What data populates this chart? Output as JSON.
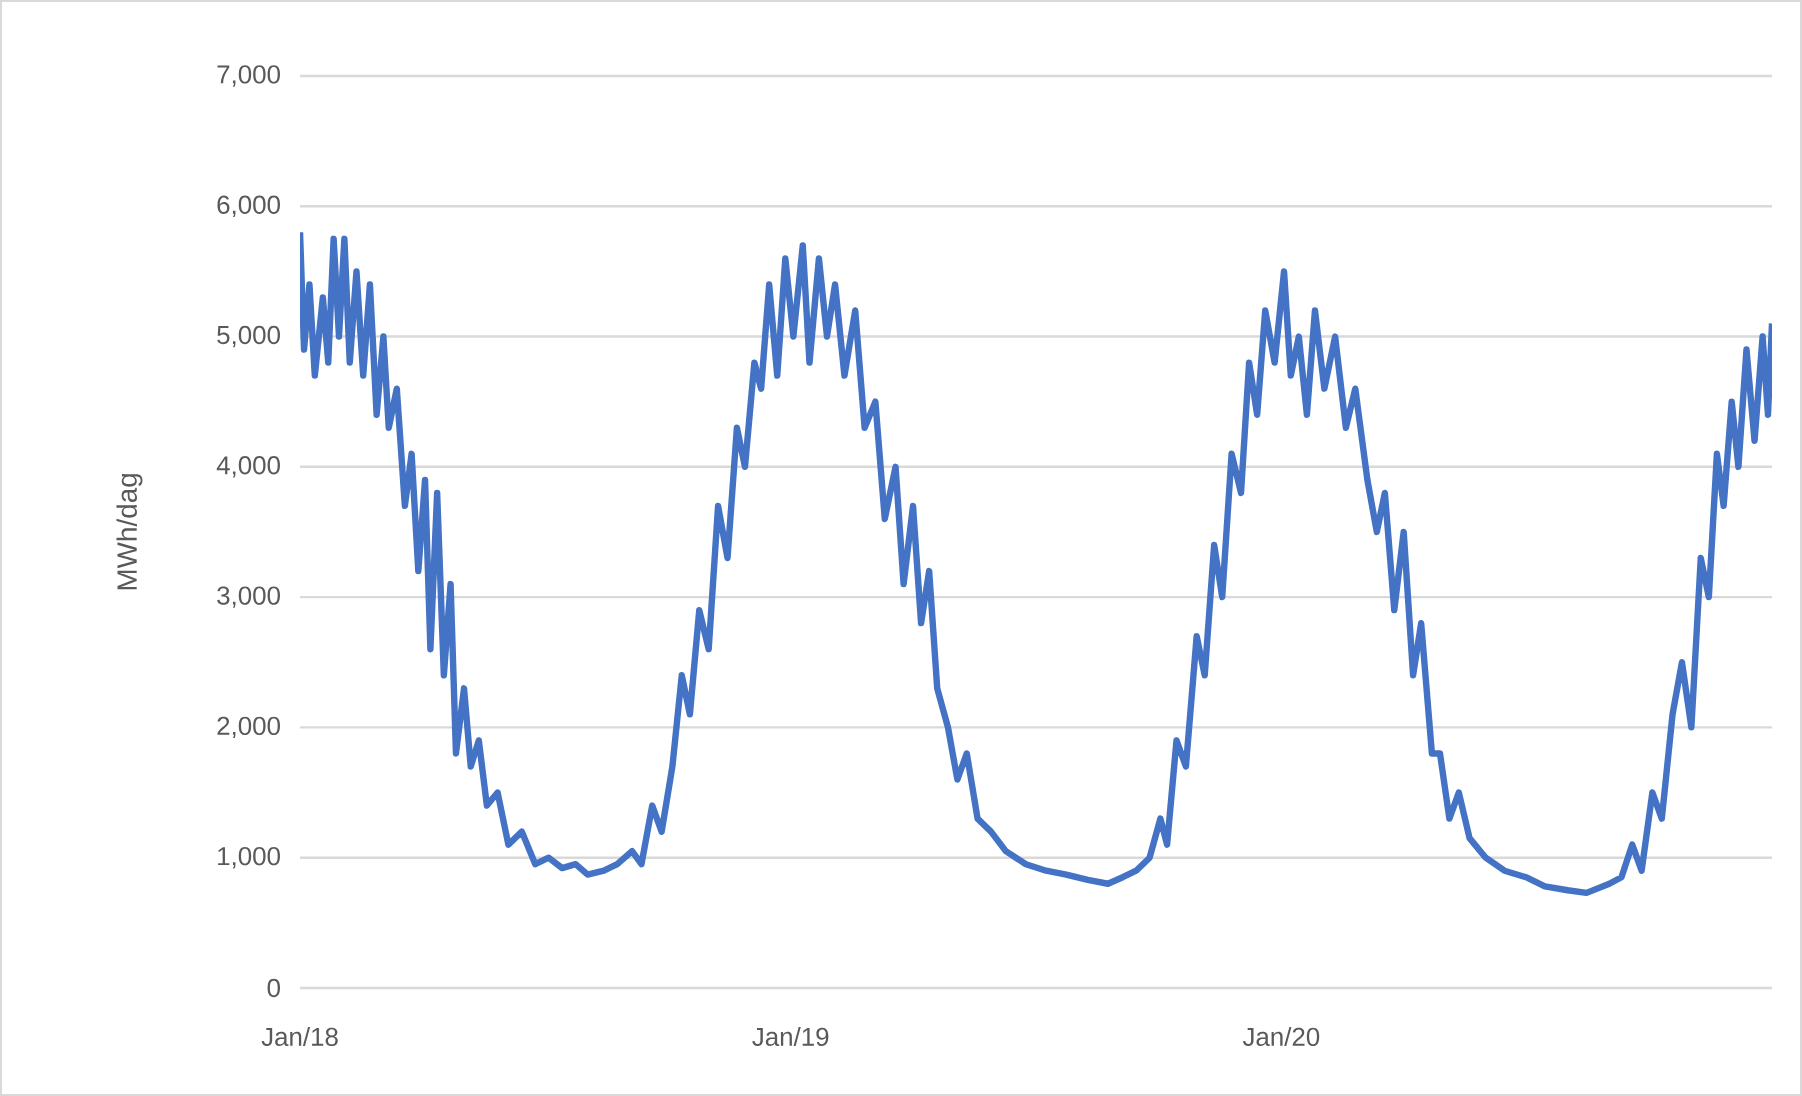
{
  "chart_data": {
    "type": "line",
    "ylabel": "MWh/dag",
    "color": "#4472c4",
    "grid": "y",
    "marker": "none",
    "line_style": "solid",
    "xlim": [
      "2018-01-01",
      "2020-12-31"
    ],
    "xticks": [
      {
        "value": "2018-01-01",
        "label": "Jan/18"
      },
      {
        "value": "2019-01-01",
        "label": "Jan/19"
      },
      {
        "value": "2020-01-01",
        "label": "Jan/20"
      }
    ],
    "ylim": [
      0,
      7000
    ],
    "yticks": [
      0,
      {
        "value": 1000,
        "label": "1,000"
      },
      {
        "value": 2000,
        "label": "2,000"
      },
      {
        "value": 3000,
        "label": "3,000"
      },
      {
        "value": 4000,
        "label": "4,000"
      },
      {
        "value": 5000,
        "label": "5,000"
      },
      {
        "value": 6000,
        "label": "6,000"
      },
      {
        "value": 7000,
        "label": "7,000"
      }
    ],
    "x": [
      "2018-01-01",
      "2018-01-04",
      "2018-01-08",
      "2018-01-12",
      "2018-01-18",
      "2018-01-22",
      "2018-01-26",
      "2018-01-30",
      "2018-02-03",
      "2018-02-07",
      "2018-02-12",
      "2018-02-17",
      "2018-02-22",
      "2018-02-27",
      "2018-03-04",
      "2018-03-08",
      "2018-03-14",
      "2018-03-20",
      "2018-03-25",
      "2018-03-30",
      "2018-04-04",
      "2018-04-08",
      "2018-04-13",
      "2018-04-18",
      "2018-04-23",
      "2018-04-27",
      "2018-05-03",
      "2018-05-08",
      "2018-05-14",
      "2018-05-20",
      "2018-05-28",
      "2018-06-05",
      "2018-06-15",
      "2018-06-25",
      "2018-07-05",
      "2018-07-15",
      "2018-07-25",
      "2018-08-03",
      "2018-08-15",
      "2018-08-25",
      "2018-09-05",
      "2018-09-12",
      "2018-09-20",
      "2018-09-27",
      "2018-10-05",
      "2018-10-12",
      "2018-10-18",
      "2018-10-25",
      "2018-11-01",
      "2018-11-08",
      "2018-11-15",
      "2018-11-22",
      "2018-11-28",
      "2018-12-05",
      "2018-12-10",
      "2018-12-16",
      "2018-12-22",
      "2018-12-28",
      "2019-01-03",
      "2019-01-10",
      "2019-01-15",
      "2019-01-22",
      "2019-01-28",
      "2019-02-03",
      "2019-02-10",
      "2019-02-18",
      "2019-02-25",
      "2019-03-05",
      "2019-03-12",
      "2019-03-20",
      "2019-03-26",
      "2019-04-02",
      "2019-04-08",
      "2019-04-14",
      "2019-04-20",
      "2019-04-28",
      "2019-05-05",
      "2019-05-12",
      "2019-05-20",
      "2019-05-30",
      "2019-06-10",
      "2019-06-25",
      "2019-07-10",
      "2019-07-25",
      "2019-08-10",
      "2019-08-25",
      "2019-09-05",
      "2019-09-15",
      "2019-09-25",
      "2019-10-03",
      "2019-10-08",
      "2019-10-15",
      "2019-10-22",
      "2019-10-30",
      "2019-11-05",
      "2019-11-12",
      "2019-11-18",
      "2019-11-25",
      "2019-12-02",
      "2019-12-08",
      "2019-12-14",
      "2019-12-20",
      "2019-12-27",
      "2020-01-03",
      "2020-01-08",
      "2020-01-14",
      "2020-01-20",
      "2020-01-26",
      "2020-02-02",
      "2020-02-10",
      "2020-02-18",
      "2020-02-25",
      "2020-03-05",
      "2020-03-12",
      "2020-03-18",
      "2020-03-25",
      "2020-04-01",
      "2020-04-08",
      "2020-04-14",
      "2020-04-22",
      "2020-04-28",
      "2020-05-05",
      "2020-05-12",
      "2020-05-20",
      "2020-06-01",
      "2020-06-15",
      "2020-07-01",
      "2020-07-15",
      "2020-08-01",
      "2020-08-15",
      "2020-09-01",
      "2020-09-10",
      "2020-09-18",
      "2020-09-25",
      "2020-10-03",
      "2020-10-10",
      "2020-10-18",
      "2020-10-25",
      "2020-11-01",
      "2020-11-08",
      "2020-11-14",
      "2020-11-20",
      "2020-11-25",
      "2020-12-01",
      "2020-12-06",
      "2020-12-12",
      "2020-12-18",
      "2020-12-24",
      "2020-12-28",
      "2020-12-31"
    ],
    "values": [
      5800,
      4900,
      5400,
      4700,
      5300,
      4800,
      5750,
      5000,
      5750,
      4800,
      5500,
      4700,
      5400,
      4400,
      5000,
      4300,
      4600,
      3700,
      4100,
      3200,
      3900,
      2600,
      3800,
      2400,
      3100,
      1800,
      2300,
      1700,
      1900,
      1400,
      1500,
      1100,
      1200,
      950,
      1000,
      920,
      950,
      870,
      900,
      950,
      1050,
      950,
      1400,
      1200,
      1700,
      2400,
      2100,
      2900,
      2600,
      3700,
      3300,
      4300,
      4000,
      4800,
      4600,
      5400,
      4700,
      5600,
      5000,
      5700,
      4800,
      5600,
      5000,
      5400,
      4700,
      5200,
      4300,
      4500,
      3600,
      4000,
      3100,
      3700,
      2800,
      3200,
      2300,
      2000,
      1600,
      1800,
      1300,
      1200,
      1050,
      950,
      900,
      870,
      830,
      800,
      850,
      900,
      1000,
      1300,
      1100,
      1900,
      1700,
      2700,
      2400,
      3400,
      3000,
      4100,
      3800,
      4800,
      4400,
      5200,
      4800,
      5500,
      4700,
      5000,
      4400,
      5200,
      4600,
      5000,
      4300,
      4600,
      3900,
      3500,
      3800,
      2900,
      3500,
      2400,
      2800,
      1800,
      1800,
      1300,
      1500,
      1150,
      1000,
      900,
      850,
      780,
      750,
      730,
      800,
      850,
      1100,
      900,
      1500,
      1300,
      2100,
      2500,
      2000,
      3300,
      3000,
      4100,
      3700,
      4500,
      4000,
      4900,
      4200,
      5000,
      4400,
      5100
    ]
  }
}
